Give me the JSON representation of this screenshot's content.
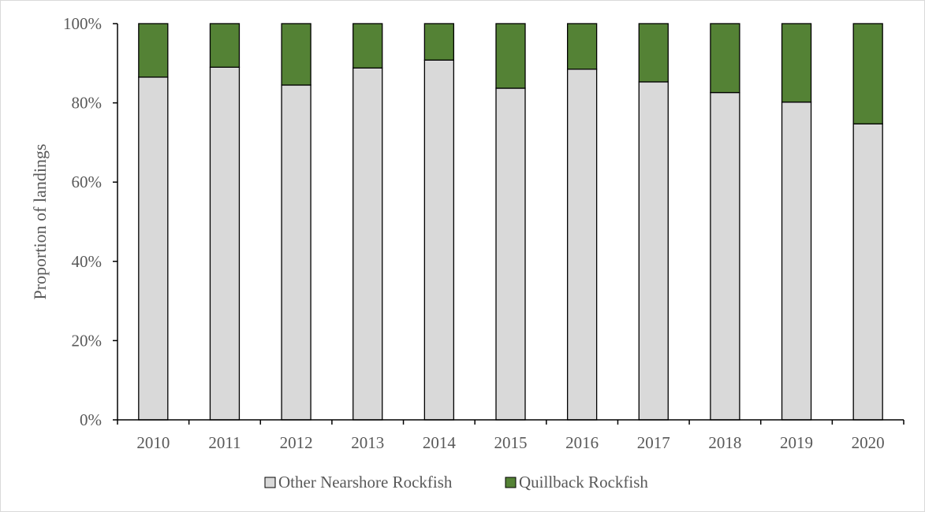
{
  "chart_data": {
    "type": "bar",
    "stacked": true,
    "normalized": true,
    "title": "",
    "xlabel": "",
    "ylabel": "Proportion of landings",
    "ylim": [
      0,
      100
    ],
    "yticks": [
      "0%",
      "20%",
      "40%",
      "60%",
      "80%",
      "100%"
    ],
    "categories": [
      "2010",
      "2011",
      "2012",
      "2013",
      "2014",
      "2015",
      "2016",
      "2017",
      "2018",
      "2019",
      "2020"
    ],
    "series": [
      {
        "name": "Other Nearshore Rockfish",
        "color": "#d9d9d9",
        "values": [
          86.5,
          89.0,
          84.5,
          88.8,
          90.8,
          83.7,
          88.5,
          85.3,
          82.6,
          80.2,
          74.7
        ]
      },
      {
        "name": "Quillback Rockfish",
        "color": "#548235",
        "values": [
          13.5,
          11.0,
          15.5,
          11.2,
          9.2,
          16.3,
          11.5,
          14.7,
          17.4,
          19.8,
          25.3
        ]
      }
    ],
    "grid": false,
    "legend": "bottom"
  }
}
